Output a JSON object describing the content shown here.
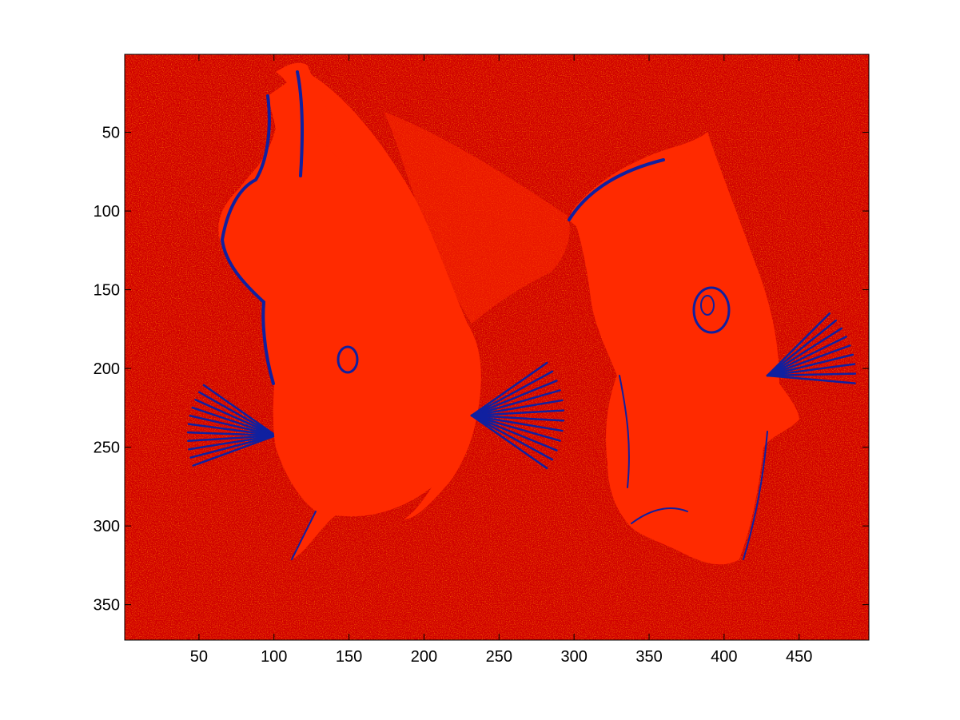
{
  "chart_data": {
    "type": "heatmap",
    "title": "",
    "xlabel": "",
    "ylabel": "",
    "xlim": [
      0.5,
      496.5
    ],
    "ylim": [
      372.5,
      0.5
    ],
    "y_axis_direction": "reversed",
    "grid": false,
    "legend": "none",
    "xticks": [
      50,
      100,
      150,
      200,
      250,
      300,
      350,
      400,
      450
    ],
    "yticks": [
      50,
      100,
      150,
      200,
      250,
      300,
      350
    ],
    "xtick_labels": [
      "50",
      "100",
      "150",
      "200",
      "250",
      "300",
      "350",
      "400",
      "450"
    ],
    "ytick_labels": [
      "50",
      "100",
      "150",
      "200",
      "250",
      "300",
      "350"
    ],
    "image_size": {
      "columns": 496,
      "rows": 372
    },
    "colormap": {
      "name": "indexed",
      "colors": [
        "#c80000",
        "#ff2a00",
        "#1020a0"
      ]
    },
    "image_subject": "two fish, rendered as an indexed-colour image",
    "colors": {
      "background": "#d00000",
      "body": "#ff2a00",
      "edges": "#1020a0",
      "axes": "#000000",
      "figure": "#ffffff"
    }
  }
}
